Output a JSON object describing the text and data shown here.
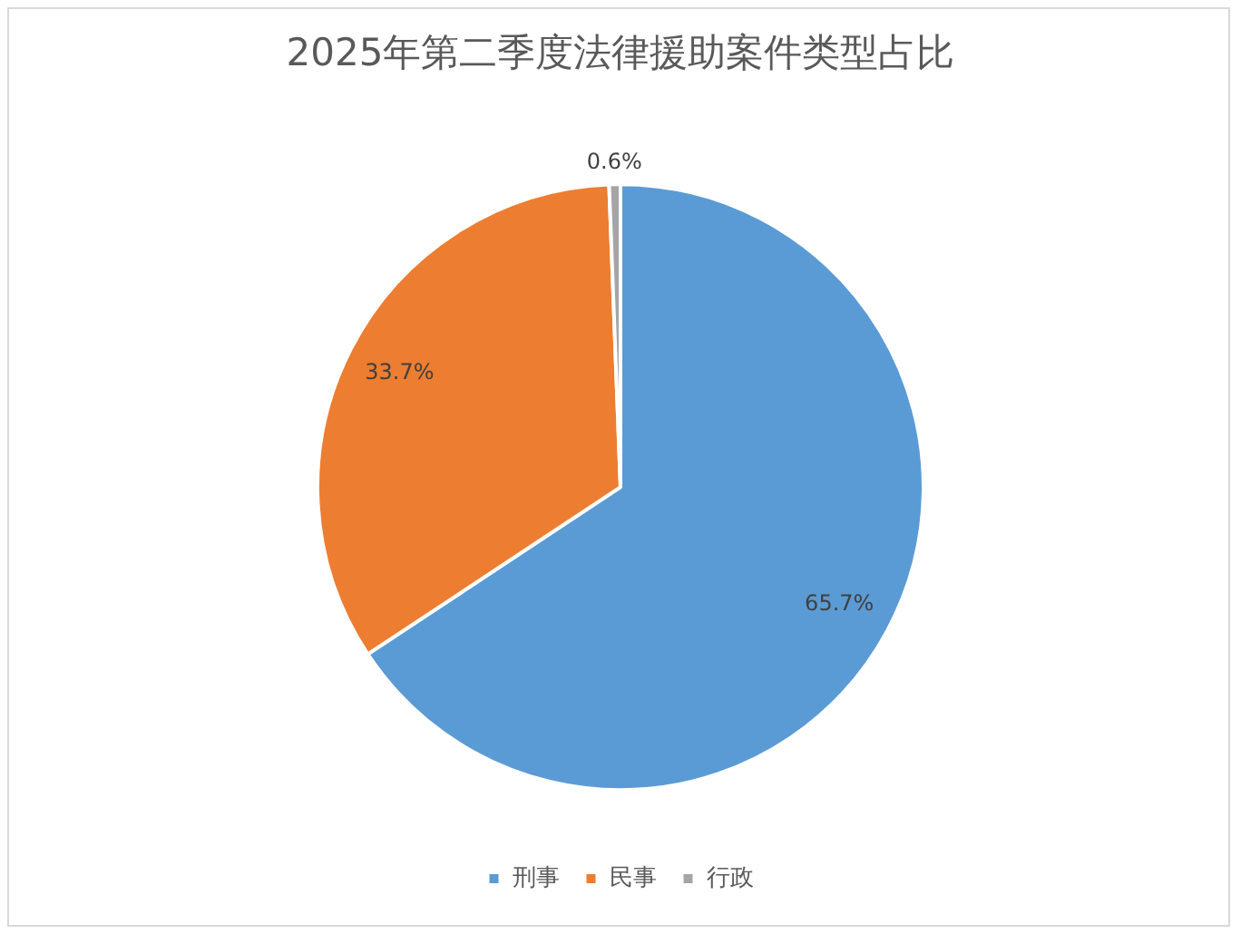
{
  "chart_data": {
    "type": "pie",
    "title": "2025年第二季度法律援助案件类型占比",
    "categories": [
      "刑事",
      "民事",
      "行政"
    ],
    "values": [
      65.7,
      33.7,
      0.6
    ],
    "colors": [
      "#5b9bd5",
      "#ed7d31",
      "#a5a5a5"
    ],
    "value_labels": [
      "65.7%",
      "33.7%",
      "0.6%"
    ],
    "legend": "bottom"
  }
}
